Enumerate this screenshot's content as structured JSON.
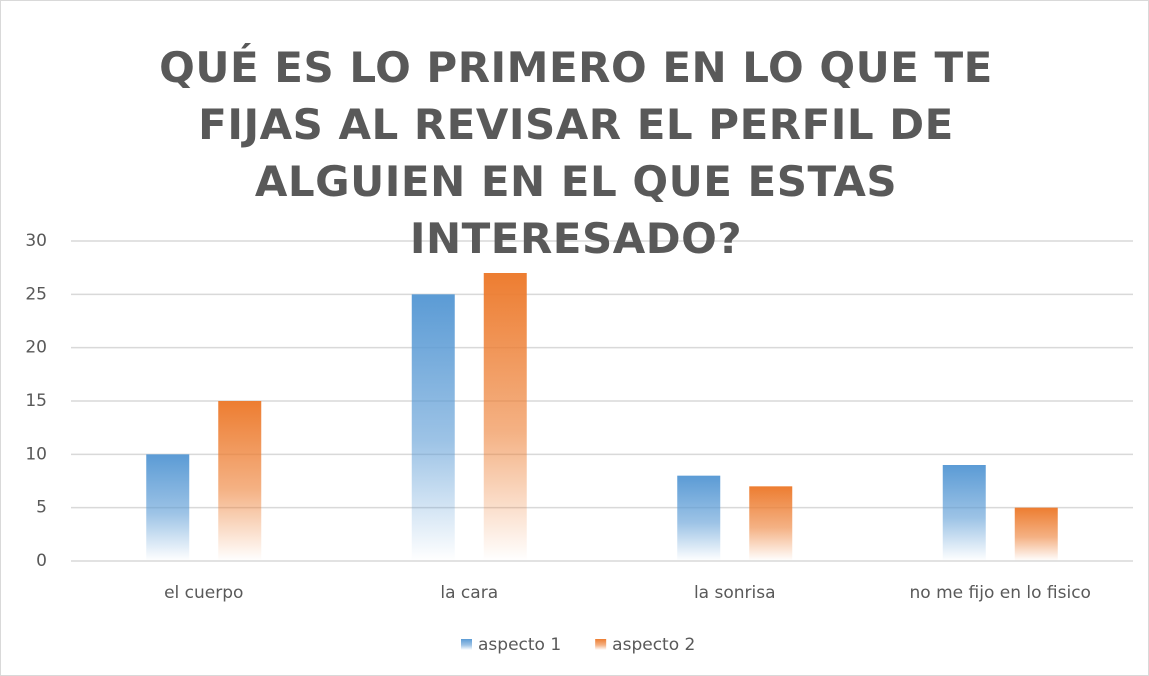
{
  "chart_data": {
    "type": "bar",
    "title": "QUÉ ES LO PRIMERO EN LO QUE TE FIJAS AL REVISAR EL PERFIL DE ALGUIEN EN EL QUE ESTAS INTERESADO?",
    "categories": [
      "el cuerpo",
      "la cara",
      "la sonrisa",
      "no me fijo en lo fisico"
    ],
    "series": [
      {
        "name": "aspecto 1",
        "color": "#5b9bd5",
        "values": [
          10,
          25,
          8,
          9
        ]
      },
      {
        "name": "aspecto 2",
        "color": "#ed7d31",
        "values": [
          15,
          27,
          7,
          5
        ]
      }
    ],
    "ylim": [
      0,
      30
    ],
    "yticks": [
      0,
      5,
      10,
      15,
      20,
      25,
      30
    ],
    "grid": true,
    "legend": "bottom"
  }
}
